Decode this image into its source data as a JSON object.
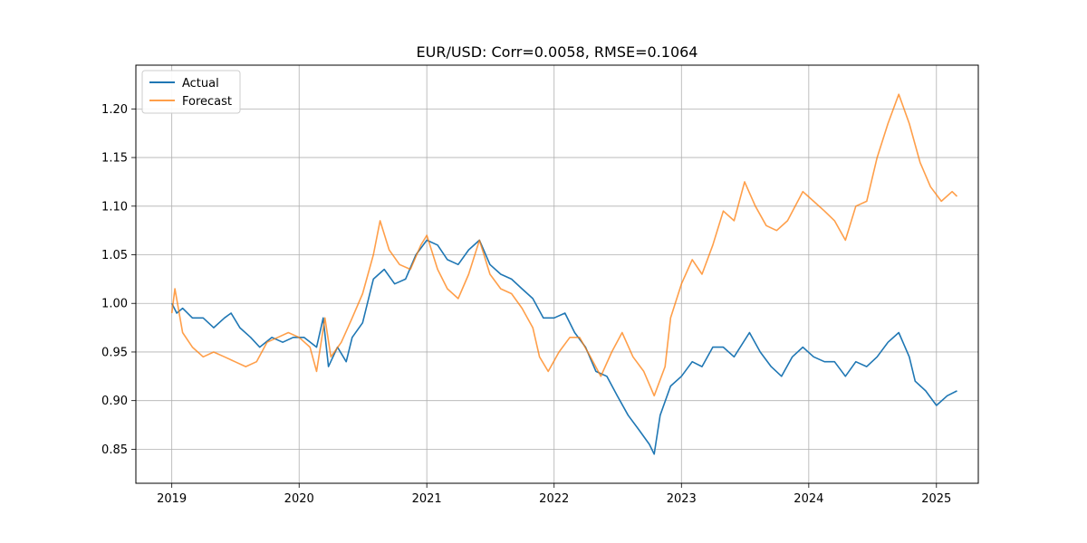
{
  "chart_data": {
    "type": "line",
    "title": "EUR/USD: Corr=0.0058, RMSE=0.1064",
    "xlabel": "",
    "ylabel": "",
    "x_ticks": [
      "2019",
      "2020",
      "2021",
      "2022",
      "2023",
      "2024",
      "2025"
    ],
    "y_ticks": [
      "0.85",
      "0.90",
      "0.95",
      "1.00",
      "1.05",
      "1.10",
      "1.15",
      "1.20"
    ],
    "xlim": [
      "2018-09-20",
      "2025-05-01"
    ],
    "ylim": [
      0.815,
      1.245
    ],
    "grid": true,
    "legend_position": "top-left",
    "series": [
      {
        "name": "Actual",
        "color": "#1f77b4",
        "points": [
          [
            "2019-01-01",
            1.0
          ],
          [
            "2019-01-15",
            0.99
          ],
          [
            "2019-02-01",
            0.995
          ],
          [
            "2019-03-01",
            0.985
          ],
          [
            "2019-04-01",
            0.985
          ],
          [
            "2019-05-01",
            0.975
          ],
          [
            "2019-06-01",
            0.985
          ],
          [
            "2019-06-20",
            0.99
          ],
          [
            "2019-07-15",
            0.975
          ],
          [
            "2019-08-15",
            0.965
          ],
          [
            "2019-09-10",
            0.955
          ],
          [
            "2019-10-15",
            0.965
          ],
          [
            "2019-11-15",
            0.96
          ],
          [
            "2019-12-15",
            0.965
          ],
          [
            "2020-01-15",
            0.965
          ],
          [
            "2020-02-20",
            0.955
          ],
          [
            "2020-03-10",
            0.985
          ],
          [
            "2020-03-25",
            0.935
          ],
          [
            "2020-04-20",
            0.955
          ],
          [
            "2020-05-15",
            0.94
          ],
          [
            "2020-06-01",
            0.965
          ],
          [
            "2020-07-01",
            0.98
          ],
          [
            "2020-08-01",
            1.025
          ],
          [
            "2020-09-01",
            1.035
          ],
          [
            "2020-10-01",
            1.02
          ],
          [
            "2020-11-01",
            1.025
          ],
          [
            "2020-12-01",
            1.05
          ],
          [
            "2021-01-01",
            1.065
          ],
          [
            "2021-02-01",
            1.06
          ],
          [
            "2021-03-01",
            1.045
          ],
          [
            "2021-04-01",
            1.04
          ],
          [
            "2021-05-01",
            1.055
          ],
          [
            "2021-06-01",
            1.065
          ],
          [
            "2021-07-01",
            1.04
          ],
          [
            "2021-08-01",
            1.03
          ],
          [
            "2021-09-01",
            1.025
          ],
          [
            "2021-10-01",
            1.015
          ],
          [
            "2021-11-01",
            1.005
          ],
          [
            "2021-12-01",
            0.985
          ],
          [
            "2022-01-01",
            0.985
          ],
          [
            "2022-02-01",
            0.99
          ],
          [
            "2022-03-01",
            0.97
          ],
          [
            "2022-04-01",
            0.955
          ],
          [
            "2022-05-01",
            0.93
          ],
          [
            "2022-06-01",
            0.925
          ],
          [
            "2022-07-01",
            0.905
          ],
          [
            "2022-08-01",
            0.885
          ],
          [
            "2022-09-01",
            0.87
          ],
          [
            "2022-10-01",
            0.855
          ],
          [
            "2022-10-15",
            0.845
          ],
          [
            "2022-11-01",
            0.885
          ],
          [
            "2022-12-01",
            0.915
          ],
          [
            "2023-01-01",
            0.925
          ],
          [
            "2023-02-01",
            0.94
          ],
          [
            "2023-03-01",
            0.935
          ],
          [
            "2023-04-01",
            0.955
          ],
          [
            "2023-05-01",
            0.955
          ],
          [
            "2023-06-01",
            0.945
          ],
          [
            "2023-07-15",
            0.97
          ],
          [
            "2023-08-15",
            0.95
          ],
          [
            "2023-09-15",
            0.935
          ],
          [
            "2023-10-15",
            0.925
          ],
          [
            "2023-11-15",
            0.945
          ],
          [
            "2023-12-15",
            0.955
          ],
          [
            "2024-01-15",
            0.945
          ],
          [
            "2024-02-15",
            0.94
          ],
          [
            "2024-03-15",
            0.94
          ],
          [
            "2024-04-15",
            0.925
          ],
          [
            "2024-05-15",
            0.94
          ],
          [
            "2024-06-15",
            0.935
          ],
          [
            "2024-07-15",
            0.945
          ],
          [
            "2024-08-15",
            0.96
          ],
          [
            "2024-09-15",
            0.97
          ],
          [
            "2024-10-15",
            0.945
          ],
          [
            "2024-11-01",
            0.92
          ],
          [
            "2024-12-01",
            0.91
          ],
          [
            "2025-01-01",
            0.895
          ],
          [
            "2025-02-01",
            0.905
          ],
          [
            "2025-03-01",
            0.91
          ]
        ]
      },
      {
        "name": "Forecast",
        "color": "#ff7f0e",
        "points": [
          [
            "2019-01-01",
            0.99
          ],
          [
            "2019-01-10",
            1.015
          ],
          [
            "2019-02-01",
            0.97
          ],
          [
            "2019-03-01",
            0.955
          ],
          [
            "2019-04-01",
            0.945
          ],
          [
            "2019-05-01",
            0.95
          ],
          [
            "2019-06-01",
            0.945
          ],
          [
            "2019-07-01",
            0.94
          ],
          [
            "2019-08-01",
            0.935
          ],
          [
            "2019-09-01",
            0.94
          ],
          [
            "2019-10-01",
            0.96
          ],
          [
            "2019-11-01",
            0.965
          ],
          [
            "2019-12-01",
            0.97
          ],
          [
            "2020-01-01",
            0.965
          ],
          [
            "2020-02-01",
            0.955
          ],
          [
            "2020-02-20",
            0.93
          ],
          [
            "2020-03-15",
            0.985
          ],
          [
            "2020-04-01",
            0.945
          ],
          [
            "2020-05-01",
            0.96
          ],
          [
            "2020-06-01",
            0.985
          ],
          [
            "2020-07-01",
            1.01
          ],
          [
            "2020-08-01",
            1.05
          ],
          [
            "2020-08-20",
            1.085
          ],
          [
            "2020-09-15",
            1.055
          ],
          [
            "2020-10-15",
            1.04
          ],
          [
            "2020-11-15",
            1.035
          ],
          [
            "2020-12-15",
            1.06
          ],
          [
            "2021-01-01",
            1.07
          ],
          [
            "2021-02-01",
            1.035
          ],
          [
            "2021-03-01",
            1.015
          ],
          [
            "2021-04-01",
            1.005
          ],
          [
            "2021-05-01",
            1.03
          ],
          [
            "2021-06-01",
            1.065
          ],
          [
            "2021-07-01",
            1.03
          ],
          [
            "2021-08-01",
            1.015
          ],
          [
            "2021-09-01",
            1.01
          ],
          [
            "2021-10-01",
            0.995
          ],
          [
            "2021-11-01",
            0.975
          ],
          [
            "2021-11-20",
            0.945
          ],
          [
            "2021-12-15",
            0.93
          ],
          [
            "2022-01-15",
            0.95
          ],
          [
            "2022-02-15",
            0.965
          ],
          [
            "2022-03-15",
            0.965
          ],
          [
            "2022-04-15",
            0.945
          ],
          [
            "2022-05-15",
            0.925
          ],
          [
            "2022-06-15",
            0.95
          ],
          [
            "2022-07-15",
            0.97
          ],
          [
            "2022-08-15",
            0.945
          ],
          [
            "2022-09-15",
            0.93
          ],
          [
            "2022-10-15",
            0.905
          ],
          [
            "2022-11-15",
            0.935
          ],
          [
            "2022-12-01",
            0.985
          ],
          [
            "2023-01-01",
            1.02
          ],
          [
            "2023-02-01",
            1.045
          ],
          [
            "2023-03-01",
            1.03
          ],
          [
            "2023-04-01",
            1.06
          ],
          [
            "2023-05-01",
            1.095
          ],
          [
            "2023-06-01",
            1.085
          ],
          [
            "2023-07-01",
            1.125
          ],
          [
            "2023-08-01",
            1.1
          ],
          [
            "2023-09-01",
            1.08
          ],
          [
            "2023-10-01",
            1.075
          ],
          [
            "2023-11-01",
            1.085
          ],
          [
            "2023-12-15",
            1.115
          ],
          [
            "2024-01-15",
            1.105
          ],
          [
            "2024-02-15",
            1.095
          ],
          [
            "2024-03-15",
            1.085
          ],
          [
            "2024-04-15",
            1.065
          ],
          [
            "2024-05-15",
            1.1
          ],
          [
            "2024-06-15",
            1.105
          ],
          [
            "2024-07-15",
            1.15
          ],
          [
            "2024-08-15",
            1.185
          ],
          [
            "2024-09-15",
            1.215
          ],
          [
            "2024-10-15",
            1.185
          ],
          [
            "2024-11-15",
            1.145
          ],
          [
            "2024-12-15",
            1.12
          ],
          [
            "2025-01-15",
            1.105
          ],
          [
            "2025-02-15",
            1.115
          ],
          [
            "2025-03-01",
            1.11
          ]
        ]
      }
    ]
  }
}
